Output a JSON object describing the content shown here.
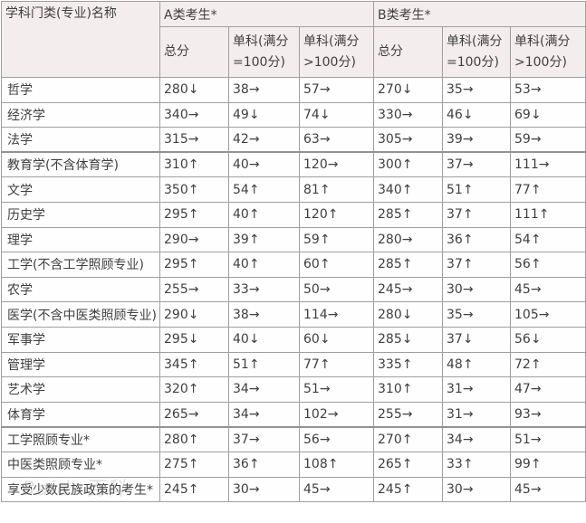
{
  "table": {
    "row_header_title": "学科门类(专业)名称",
    "group_a_label": "A类考生*",
    "group_b_label": "B类考生*",
    "sub_headers": [
      "总分",
      "单科(满分 =100分)",
      "单科(满分 >100分)"
    ],
    "thick_border_above_rows": [
      3,
      14
    ],
    "rows": [
      {
        "name": "哲学",
        "a": [
          "280↓",
          "38→",
          "57→"
        ],
        "b": [
          "270↓",
          "35→",
          "53→"
        ]
      },
      {
        "name": "经济学",
        "a": [
          "340→",
          "49↓",
          "74↓"
        ],
        "b": [
          "330→",
          "46↓",
          "69↓"
        ]
      },
      {
        "name": "法学",
        "a": [
          "315→",
          "42→",
          "63→"
        ],
        "b": [
          "305→",
          "39→",
          "59→"
        ]
      },
      {
        "name": "教育学(不含体育学)",
        "a": [
          "310↑",
          "40→",
          "120→"
        ],
        "b": [
          "300↑",
          "37→",
          "111→"
        ]
      },
      {
        "name": "文学",
        "a": [
          "350↑",
          "54↑",
          "81↑"
        ],
        "b": [
          "340↑",
          "51↑",
          "77↑"
        ]
      },
      {
        "name": "历史学",
        "a": [
          "295↑",
          "40↑",
          "120↑"
        ],
        "b": [
          "285↑",
          "37↑",
          "111↑"
        ]
      },
      {
        "name": "理学",
        "a": [
          "290→",
          "39↑",
          "59↑"
        ],
        "b": [
          "280→",
          "36↑",
          "54↑"
        ]
      },
      {
        "name": "工学(不含工学照顾专业)",
        "a": [
          "295↑",
          "40↑",
          "60↑"
        ],
        "b": [
          "285↑",
          "37↑",
          "56↑"
        ]
      },
      {
        "name": "农学",
        "a": [
          "255→",
          "33→",
          "50→"
        ],
        "b": [
          "245→",
          "30→",
          "45→"
        ]
      },
      {
        "name": "医学(不含中医类照顾专业)",
        "a": [
          "290↓",
          "38→",
          "114→"
        ],
        "b": [
          "280↓",
          "35→",
          "105→"
        ]
      },
      {
        "name": "军事学",
        "a": [
          "295↓",
          "40↓",
          "60↓"
        ],
        "b": [
          "285↓",
          "37↓",
          "56↓"
        ]
      },
      {
        "name": "管理学",
        "a": [
          "345↑",
          "51↑",
          "77↑"
        ],
        "b": [
          "335↑",
          "48↑",
          "72↑"
        ]
      },
      {
        "name": "艺术学",
        "a": [
          "320↑",
          "34→",
          "51→"
        ],
        "b": [
          "310↑",
          "31→",
          "47→"
        ]
      },
      {
        "name": "体育学",
        "a": [
          "265→",
          "34→",
          "102→"
        ],
        "b": [
          "255→",
          "31→",
          "93→"
        ]
      },
      {
        "name": "工学照顾专业*",
        "a": [
          "280↑",
          "37→",
          "56→"
        ],
        "b": [
          "270↑",
          "34→",
          "51→"
        ]
      },
      {
        "name": "中医类照顾专业*",
        "a": [
          "275↑",
          "36↑",
          "108↑"
        ],
        "b": [
          "265↑",
          "33↑",
          "99↑"
        ]
      },
      {
        "name": "享受少数民族政策的考生*",
        "a": [
          "245↑",
          "30→",
          "45→"
        ],
        "b": [
          "245↑",
          "30→",
          "45→"
        ]
      }
    ]
  },
  "watermark": "Baidu百科",
  "colors": {
    "header_background": "#f4eded",
    "border": "#9f9f9f",
    "thick_border": "#939393",
    "text": "#3f3f3f"
  }
}
